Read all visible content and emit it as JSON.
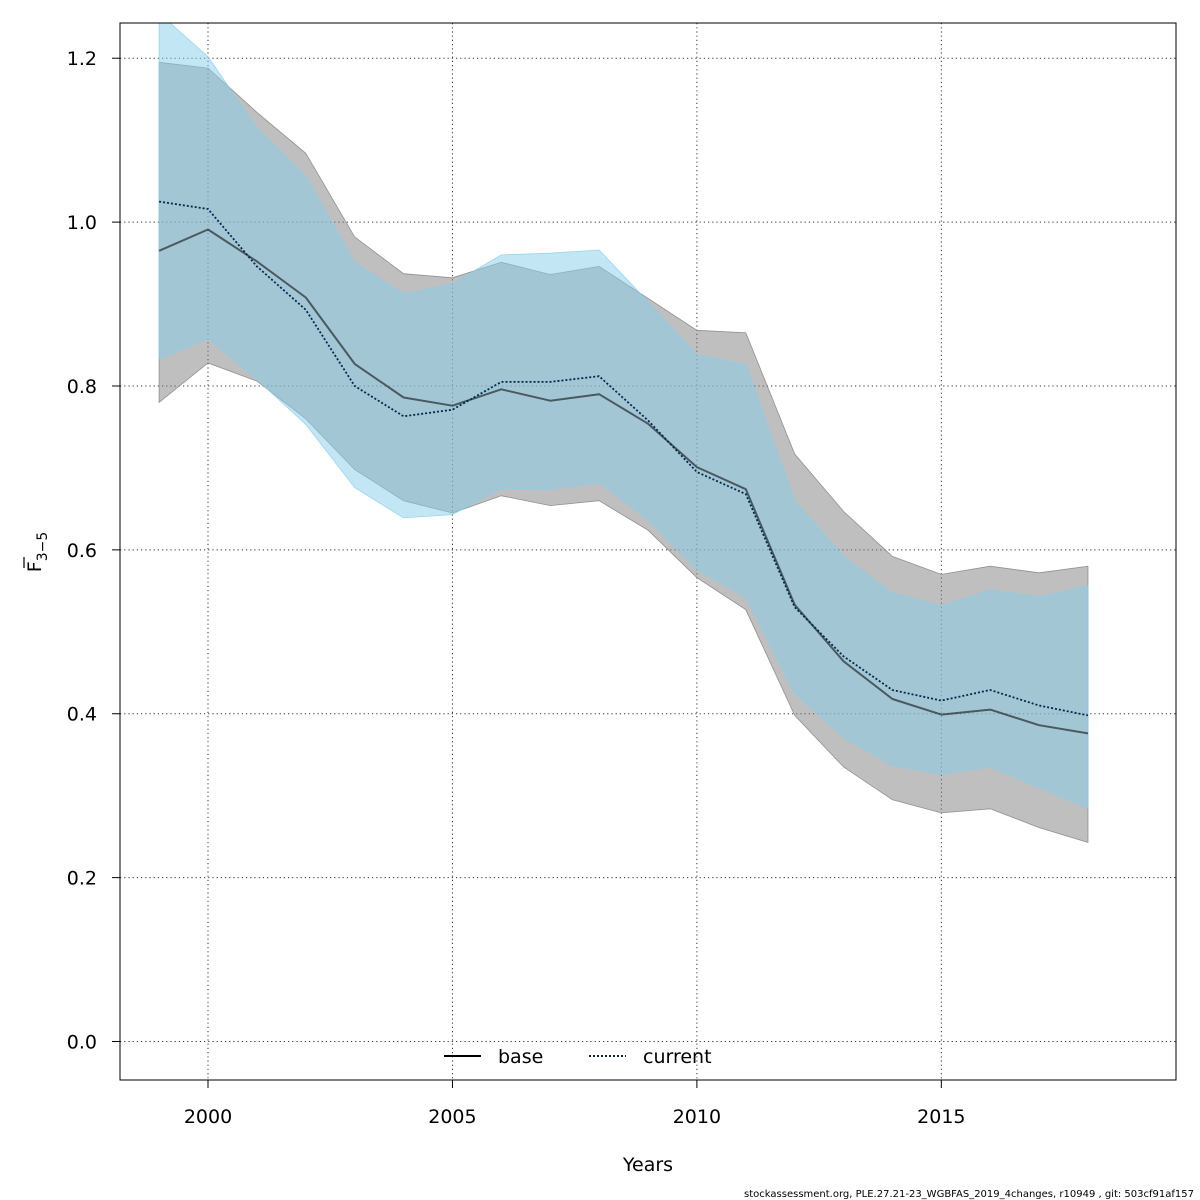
{
  "chart_data": {
    "type": "line",
    "xlabel": "Years",
    "ylabel_main": "F",
    "ylabel_sub": "3−5",
    "xlim": [
      1998.2,
      2019.8
    ],
    "ylim": [
      -0.047,
      1.243
    ],
    "x_ticks": [
      2000,
      2005,
      2010,
      2015
    ],
    "y_ticks": [
      0.0,
      0.2,
      0.4,
      0.6,
      0.8,
      1.0,
      1.2
    ],
    "y_tick_labels": [
      "0.0",
      "0.2",
      "0.4",
      "0.6",
      "0.8",
      "1.0",
      "1.2"
    ],
    "grid": true,
    "legend_position": "bottom-center",
    "x": [
      1999,
      2000,
      2001,
      2002,
      2003,
      2004,
      2005,
      2006,
      2007,
      2008,
      2009,
      2010,
      2011,
      2012,
      2013,
      2014,
      2015,
      2016,
      2017,
      2018
    ],
    "series": [
      {
        "name": "base",
        "color": "#000000",
        "line_style": "solid",
        "band_color": "#7f7f7f",
        "values": [
          0.965,
          0.991,
          0.952,
          0.908,
          0.827,
          0.786,
          0.776,
          0.796,
          0.782,
          0.79,
          0.754,
          0.701,
          0.674,
          0.533,
          0.464,
          0.418,
          0.399,
          0.405,
          0.386,
          0.376
        ],
        "lower": [
          0.78,
          0.828,
          0.806,
          0.76,
          0.698,
          0.66,
          0.645,
          0.666,
          0.654,
          0.66,
          0.624,
          0.566,
          0.527,
          0.398,
          0.335,
          0.295,
          0.279,
          0.284,
          0.261,
          0.243
        ],
        "upper": [
          1.195,
          1.188,
          1.134,
          1.084,
          0.982,
          0.937,
          0.932,
          0.951,
          0.936,
          0.946,
          0.907,
          0.868,
          0.865,
          0.717,
          0.647,
          0.592,
          0.57,
          0.58,
          0.572,
          0.58
        ]
      },
      {
        "name": "current",
        "color": "#00294d",
        "line_style": "dotted",
        "band_color": "#87ceeb",
        "values": [
          1.025,
          1.016,
          0.946,
          0.893,
          0.8,
          0.763,
          0.771,
          0.805,
          0.805,
          0.812,
          0.758,
          0.695,
          0.668,
          0.53,
          0.47,
          0.429,
          0.416,
          0.429,
          0.41,
          0.398
        ],
        "lower": [
          0.833,
          0.858,
          0.808,
          0.753,
          0.676,
          0.639,
          0.643,
          0.675,
          0.674,
          0.682,
          0.637,
          0.576,
          0.543,
          0.425,
          0.371,
          0.337,
          0.326,
          0.335,
          0.31,
          0.285
        ],
        "upper": [
          1.255,
          1.202,
          1.115,
          1.056,
          0.951,
          0.912,
          0.925,
          0.96,
          0.962,
          0.966,
          0.903,
          0.838,
          0.826,
          0.66,
          0.592,
          0.547,
          0.532,
          0.551,
          0.543,
          0.556
        ]
      }
    ]
  },
  "footer_text": "stockassessment.org, PLE.27.21-23_WGBFAS_2019_4changes, r10949 , git: 503cf91af157"
}
